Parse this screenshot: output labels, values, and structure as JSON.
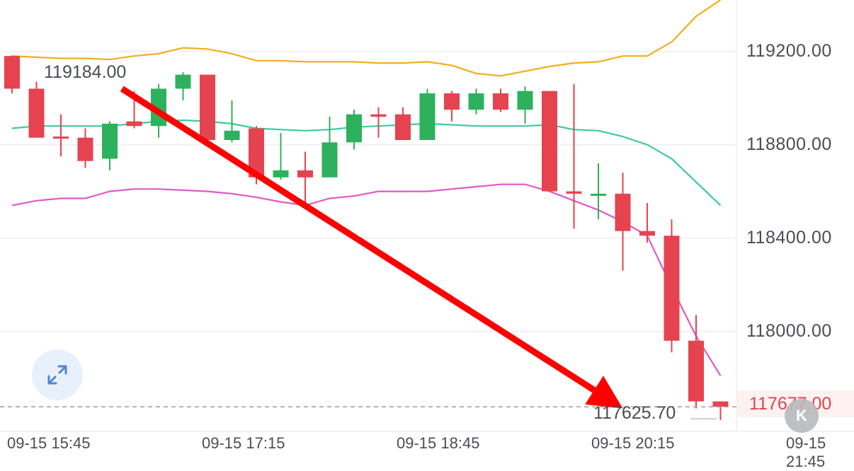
{
  "chart_data": {
    "type": "candlestick",
    "y_ticks": [
      "119200.00",
      "118800.00",
      "118400.00",
      "118000.00"
    ],
    "y_tick_values": [
      119200,
      118800,
      118400,
      118000
    ],
    "ylim": [
      117520,
      119420
    ],
    "x_ticks": [
      "09-15 15:45",
      "09-15 17:15",
      "09-15 18:45",
      "09-15 20:15",
      "09-15 21:45"
    ],
    "high_label": "119184.00",
    "low_label": "117625.70",
    "last_price_label": "117677.00",
    "last_price": 117677,
    "colors": {
      "up": "#2db15d",
      "down": "#e5434f",
      "upper_band": "#f2ae1c",
      "middle_band": "#3dc9a3",
      "lower_band": "#e05ac6",
      "arrow": "#ff0000",
      "price_tag": "#e0454f"
    },
    "candles": [
      {
        "o": 119180,
        "h": 119182,
        "l": 119020,
        "c": 119040
      },
      {
        "o": 119040,
        "h": 119070,
        "l": 118830,
        "c": 118830
      },
      {
        "o": 118835,
        "h": 118930,
        "l": 118750,
        "c": 118830
      },
      {
        "o": 118830,
        "h": 118870,
        "l": 118700,
        "c": 118730
      },
      {
        "o": 118740,
        "h": 118900,
        "l": 118690,
        "c": 118890
      },
      {
        "o": 118900,
        "h": 119030,
        "l": 118870,
        "c": 118880
      },
      {
        "o": 118880,
        "h": 119060,
        "l": 118830,
        "c": 119040
      },
      {
        "o": 119040,
        "h": 119110,
        "l": 118990,
        "c": 119100
      },
      {
        "o": 119100,
        "h": 119100,
        "l": 118820,
        "c": 118820
      },
      {
        "o": 118820,
        "h": 118990,
        "l": 118810,
        "c": 118860
      },
      {
        "o": 118870,
        "h": 118880,
        "l": 118630,
        "c": 118660
      },
      {
        "o": 118660,
        "h": 118850,
        "l": 118650,
        "c": 118690
      },
      {
        "o": 118690,
        "h": 118770,
        "l": 118550,
        "c": 118660
      },
      {
        "o": 118660,
        "h": 118920,
        "l": 118660,
        "c": 118810
      },
      {
        "o": 118810,
        "h": 118950,
        "l": 118780,
        "c": 118930
      },
      {
        "o": 118930,
        "h": 118960,
        "l": 118830,
        "c": 118920
      },
      {
        "o": 118930,
        "h": 118960,
        "l": 118830,
        "c": 118820
      },
      {
        "o": 118820,
        "h": 119040,
        "l": 118820,
        "c": 119020
      },
      {
        "o": 119020,
        "h": 119030,
        "l": 118900,
        "c": 118950
      },
      {
        "o": 118950,
        "h": 119040,
        "l": 118930,
        "c": 119020
      },
      {
        "o": 119020,
        "h": 119040,
        "l": 118940,
        "c": 118950
      },
      {
        "o": 118950,
        "h": 119050,
        "l": 118890,
        "c": 119030
      },
      {
        "o": 119030,
        "h": 119030,
        "l": 118600,
        "c": 118600
      },
      {
        "o": 118600,
        "h": 119060,
        "l": 118440,
        "c": 118590
      },
      {
        "o": 118590,
        "h": 118720,
        "l": 118480,
        "c": 118590
      },
      {
        "o": 118590,
        "h": 118680,
        "l": 118260,
        "c": 118430
      },
      {
        "o": 118430,
        "h": 118550,
        "l": 118380,
        "c": 118410
      },
      {
        "o": 118410,
        "h": 118480,
        "l": 117910,
        "c": 117960
      },
      {
        "o": 117960,
        "h": 118070,
        "l": 117670,
        "c": 117700
      },
      {
        "o": 117700,
        "h": 117700,
        "l": 117620,
        "c": 117677
      }
    ],
    "upper_band": [
      119180,
      119175,
      119170,
      119170,
      119165,
      119180,
      119190,
      119215,
      119210,
      119190,
      119160,
      119160,
      119155,
      119155,
      119155,
      119150,
      119150,
      119155,
      119140,
      119105,
      119095,
      119115,
      119135,
      119150,
      119155,
      119180,
      119180,
      119240,
      119350,
      119420
    ],
    "middle_band": [
      118870,
      118880,
      118880,
      118880,
      118880,
      118890,
      118900,
      118905,
      118900,
      118890,
      118870,
      118865,
      118860,
      118865,
      118875,
      118880,
      118885,
      118890,
      118885,
      118880,
      118880,
      118880,
      118885,
      118865,
      118860,
      118835,
      118800,
      118740,
      118640,
      118540
    ],
    "lower_band": [
      118540,
      118560,
      118570,
      118570,
      118600,
      118610,
      118610,
      118605,
      118600,
      118590,
      118575,
      118555,
      118540,
      118570,
      118580,
      118600,
      118600,
      118600,
      118610,
      118620,
      118630,
      118630,
      118600,
      118560,
      118520,
      118470,
      118410,
      118190,
      117980,
      117810
    ],
    "arrow_from": {
      "index": 4.5,
      "price": 119040
    },
    "arrow_to": {
      "index": 25,
      "price": 117670
    }
  },
  "controls": {
    "expand_icon": "expand-arrows-icon",
    "k_button_label": "K"
  }
}
